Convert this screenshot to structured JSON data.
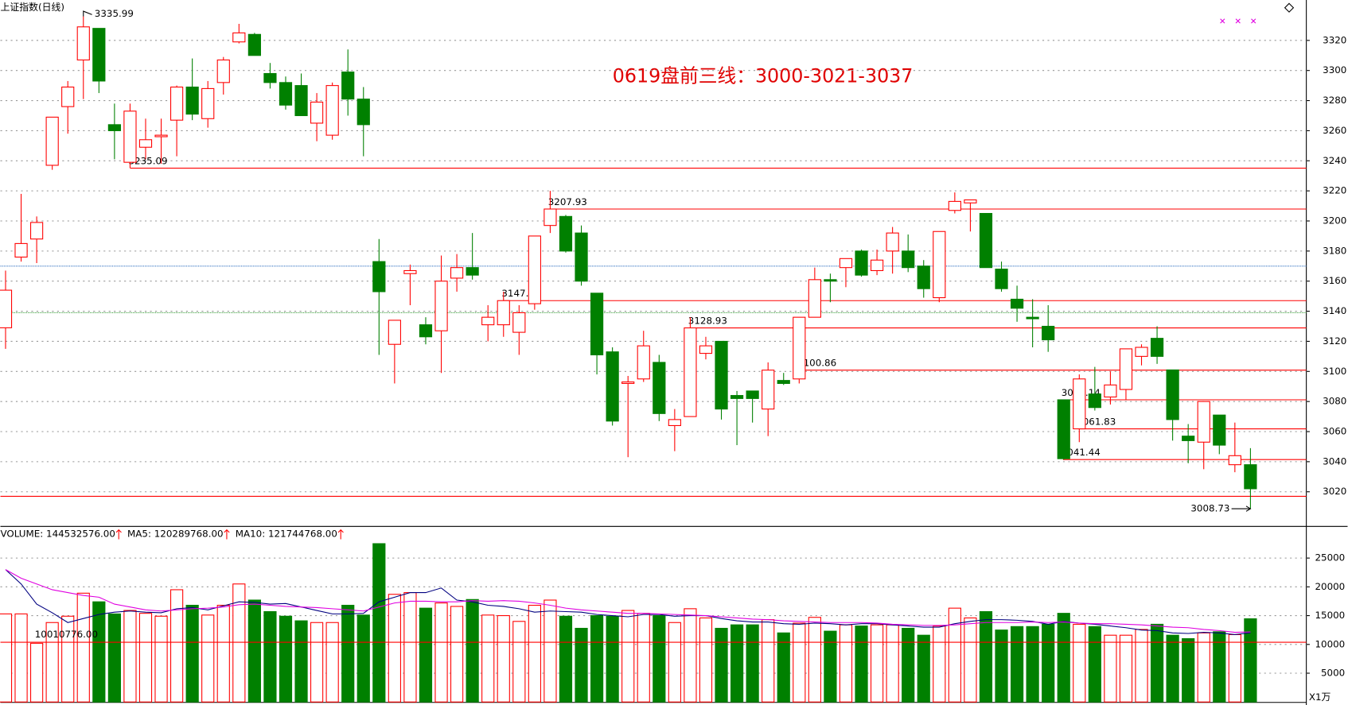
{
  "chart_data": [
    {
      "type": "candlestick",
      "title": "上证指数(日线)",
      "annotation": "0619盘前三线：3000-3021-3037",
      "up_color": "#ff0000",
      "down_color": "#008000",
      "open": [
        3129,
        3176,
        3188,
        3237,
        3276,
        3307,
        3328,
        3264,
        3239,
        3249,
        3256,
        3267,
        3289,
        3268,
        3292,
        3319,
        3324,
        3298,
        3292,
        3290,
        3265,
        3257,
        3299,
        3281,
        3173,
        3118,
        3165,
        3131,
        3127,
        3162,
        3169,
        3131,
        3131,
        3126,
        3145,
        3197,
        3203,
        3192,
        3152,
        3113,
        3092,
        3095,
        3106,
        3064,
        3070,
        3112,
        3120,
        3084,
        3087,
        3075,
        3094,
        3095,
        3136,
        3161,
        3169,
        3180,
        3167,
        3180,
        3180,
        3170,
        3149,
        3207,
        3212,
        3205,
        3168,
        3148,
        3136,
        3130,
        3081.14,
        3061.83,
        3085,
        3083,
        3088,
        3110,
        3122,
        3101,
        3057,
        3053,
        3071,
        3038,
        3038
      ],
      "high": [
        3167,
        3218,
        3203,
        3269,
        3293,
        3335.99,
        3328,
        3278,
        3278,
        3268,
        3268,
        3290,
        3308,
        3293,
        3309,
        3331,
        3325,
        3305,
        3296,
        3298,
        3285,
        3292,
        3314,
        3289,
        3188,
        3134,
        3171,
        3136,
        3177,
        3178,
        3192,
        3144,
        3153,
        3144,
        3190,
        3220,
        3204,
        3197,
        3152,
        3116,
        3097,
        3127,
        3111,
        3075,
        3136,
        3123,
        3120,
        3087,
        3087,
        3106,
        3099,
        3136,
        3169,
        3165,
        3175,
        3181,
        3181,
        3196,
        3191,
        3174,
        3193,
        3219,
        3214,
        3205,
        3173,
        3157,
        3148,
        3144,
        3081.14,
        3098,
        3103,
        3100,
        3115,
        3118,
        3130,
        3101,
        3065,
        3080,
        3071,
        3066,
        3049
      ],
      "low": [
        3115,
        3173,
        3172,
        3234,
        3258,
        3281,
        3285,
        3241,
        3235.09,
        3241,
        3238,
        3243,
        3267,
        3262,
        3284,
        3318,
        3310,
        3288,
        3274,
        3270,
        3253,
        3254,
        3270,
        3243,
        3111,
        3092,
        3144,
        3118,
        3099,
        3153,
        3161,
        3120,
        3123,
        3111,
        3141,
        3192,
        3179,
        3157,
        3098,
        3064,
        3043,
        3093,
        3067,
        3047,
        3070,
        3108,
        3068,
        3051,
        3066,
        3057,
        3091,
        3092,
        3136,
        3146,
        3156,
        3163,
        3164,
        3165,
        3166,
        3149,
        3146,
        3205,
        3193,
        3169,
        3153,
        3133,
        3116,
        3113,
        3041.44,
        3053,
        3074,
        3078,
        3081,
        3104,
        3105,
        3054,
        3039,
        3035,
        3045,
        3033,
        3008.73
      ],
      "close": [
        3154,
        3185,
        3199,
        3269,
        3289,
        3329,
        3293,
        3260,
        3273,
        3254,
        3257,
        3289,
        3271,
        3288,
        3307,
        3325,
        3310,
        3292,
        3277,
        3270,
        3279,
        3290,
        3281,
        3264,
        3153,
        3134,
        3167,
        3123,
        3160,
        3169,
        3164,
        3136,
        3147.05,
        3139,
        3190,
        3207.93,
        3180,
        3160,
        3111,
        3067,
        3093,
        3117,
        3072,
        3068,
        3128.93,
        3117,
        3075,
        3082,
        3082,
        3100.86,
        3092,
        3136,
        3161,
        3160,
        3175,
        3164,
        3174,
        3192,
        3169,
        3155,
        3193,
        3213,
        3214,
        3169,
        3155,
        3142,
        3135,
        3121,
        3042,
        3095,
        3076,
        3091,
        3115,
        3116,
        3110,
        3068,
        3054,
        3080,
        3051,
        3044,
        3022
      ],
      "levels": [
        3235.09,
        3207.93,
        3147.05,
        3128.93,
        3100.86,
        3081.14,
        3061.83,
        3041.44
      ],
      "level_color": "#ff0000",
      "lines": [
        {
          "value": 3017,
          "color": "#ff0000"
        },
        {
          "value": 3170,
          "color": "#3070c0"
        },
        {
          "value": 3139,
          "color": "#40a040"
        }
      ],
      "high_label": 3335.99,
      "low_label": 3008.73,
      "ylim": [
        2997,
        3344
      ],
      "yticks": [
        3020,
        3040,
        3060,
        3080,
        3100,
        3120,
        3140,
        3160,
        3180,
        3200,
        3220,
        3240,
        3260,
        3280,
        3300,
        3320
      ],
      "grid": true
    },
    {
      "type": "volume",
      "legend": [
        {
          "label": "VOLUME: 144532576.00",
          "color": "#000080"
        },
        {
          "label": "MA5: 120289768.00",
          "color": "#000080"
        },
        {
          "label": "MA10: 121744768.00",
          "color": "#e000e0"
        }
      ],
      "values": [
        15300,
        15300,
        10200,
        13800,
        14900,
        18900,
        17400,
        15300,
        15900,
        15400,
        14900,
        19500,
        16800,
        15100,
        16800,
        20500,
        17700,
        15700,
        14900,
        14100,
        13800,
        13800,
        16800,
        15100,
        27500,
        18700,
        19000,
        16300,
        17200,
        16600,
        17800,
        15100,
        15000,
        14000,
        16800,
        17700,
        14900,
        12800,
        15000,
        14900,
        15900,
        15400,
        15000,
        13800,
        16200,
        14600,
        12800,
        13400,
        13400,
        14300,
        12000,
        13700,
        14700,
        12300,
        13400,
        13200,
        13400,
        13400,
        12800,
        11600,
        13200,
        16300,
        14600,
        15700,
        12500,
        13100,
        13100,
        13500,
        15400,
        13500,
        13100,
        11600,
        11600,
        12600,
        13500,
        11600,
        11000,
        12000,
        12200,
        11700,
        14453
      ],
      "series": [
        {
          "name": "MA5",
          "color": "#000080",
          "values": [
            23000,
            20500,
            17000,
            15500,
            13800,
            14500,
            15200,
            15600,
            15800,
            15600,
            15500,
            16200,
            16400,
            16000,
            16700,
            17400,
            17300,
            17000,
            17100,
            16500,
            15900,
            15300,
            15300,
            15400,
            17400,
            18200,
            19000,
            19000,
            19800,
            17700,
            17400,
            16800,
            16600,
            16200,
            15600,
            15800,
            15700,
            15600,
            15200,
            15000,
            14800,
            15200,
            15200,
            14900,
            15000,
            15000,
            14500,
            14100,
            13900,
            13900,
            13600,
            13500,
            13700,
            13600,
            13400,
            13600,
            13600,
            13400,
            13200,
            13000,
            13000,
            13600,
            14000,
            14300,
            14300,
            14200,
            14000,
            13500,
            14000,
            13700,
            13500,
            13200,
            12900,
            12500,
            12400,
            12000,
            11900,
            12100,
            12000,
            11700,
            12029
          ]
        },
        {
          "name": "MA10",
          "color": "#e000e0",
          "values": [
            23000,
            21500,
            20500,
            19500,
            19000,
            18500,
            18200,
            17000,
            16500,
            16000,
            15800,
            16000,
            16200,
            16300,
            16500,
            16900,
            17000,
            16800,
            16600,
            16500,
            16400,
            16200,
            16000,
            15800,
            16500,
            17200,
            17500,
            17500,
            17400,
            17400,
            17600,
            17500,
            17600,
            17500,
            17200,
            16800,
            16300,
            16000,
            15800,
            15600,
            15400,
            15400,
            15300,
            15200,
            15100,
            15000,
            14800,
            14600,
            14400,
            14300,
            14100,
            14000,
            13900,
            13800,
            13800,
            13800,
            13700,
            13500,
            13400,
            13300,
            13300,
            13400,
            13600,
            13800,
            13800,
            13800,
            13900,
            13800,
            13900,
            13700,
            13600,
            13600,
            13500,
            13400,
            13200,
            13000,
            12900,
            12600,
            12400,
            12100,
            12174
          ]
        }
      ],
      "ref_line": 10370,
      "ref_note": "10010776.00",
      "unit": "X1万",
      "ylim": [
        0,
        30500
      ],
      "yticks": [
        5000,
        10000,
        15000,
        20000,
        25000
      ],
      "grid": true
    }
  ]
}
